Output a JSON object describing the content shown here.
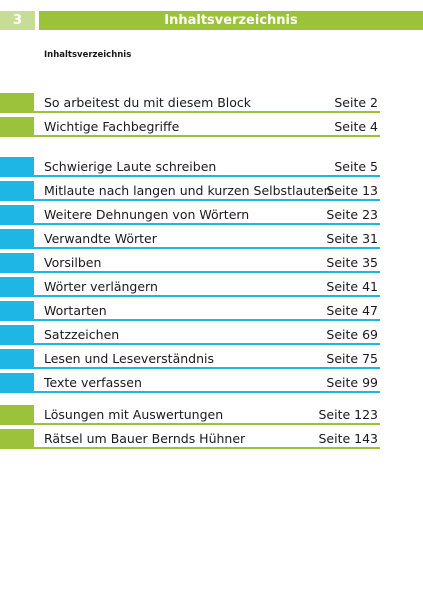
{
  "header": {
    "page_number": "3",
    "title": "Inhaltsverzeichnis"
  },
  "subtitle": "Inhaltsverzeichnis",
  "colors": {
    "green": "#9cc23c",
    "light_green": "#c7dd95",
    "blue": "#1eb6e5"
  },
  "groups": [
    {
      "color": "green",
      "items": [
        {
          "label": "So arbeitest du mit diesem Block",
          "page": "Seite 2"
        },
        {
          "label": "Wichtige Fachbegriffe",
          "page": "Seite 4"
        }
      ]
    },
    {
      "color": "blue",
      "items": [
        {
          "label": "Schwierige Laute schreiben",
          "page": "Seite 5"
        },
        {
          "label": "Mitlaute nach langen und kurzen Selbstlauten",
          "page": "Seite 13"
        },
        {
          "label": "Weitere Dehnungen von Wörtern",
          "page": "Seite 23"
        },
        {
          "label": "Verwandte Wörter",
          "page": "Seite 31"
        },
        {
          "label": "Vorsilben",
          "page": "Seite 35"
        },
        {
          "label": "Wörter verlängern",
          "page": "Seite 41"
        },
        {
          "label": "Wortarten",
          "page": "Seite 47"
        },
        {
          "label": "Satzzeichen",
          "page": "Seite 69"
        },
        {
          "label": "Lesen und Leseverständnis",
          "page": "Seite 75"
        },
        {
          "label": "Texte verfassen",
          "page": "Seite 99"
        }
      ]
    },
    {
      "color": "green",
      "items": [
        {
          "label": "Lösungen mit Auswertungen",
          "page": "Seite 123"
        },
        {
          "label": "Rätsel um Bauer Bernds Hühner",
          "page": "Seite 143"
        }
      ]
    }
  ]
}
